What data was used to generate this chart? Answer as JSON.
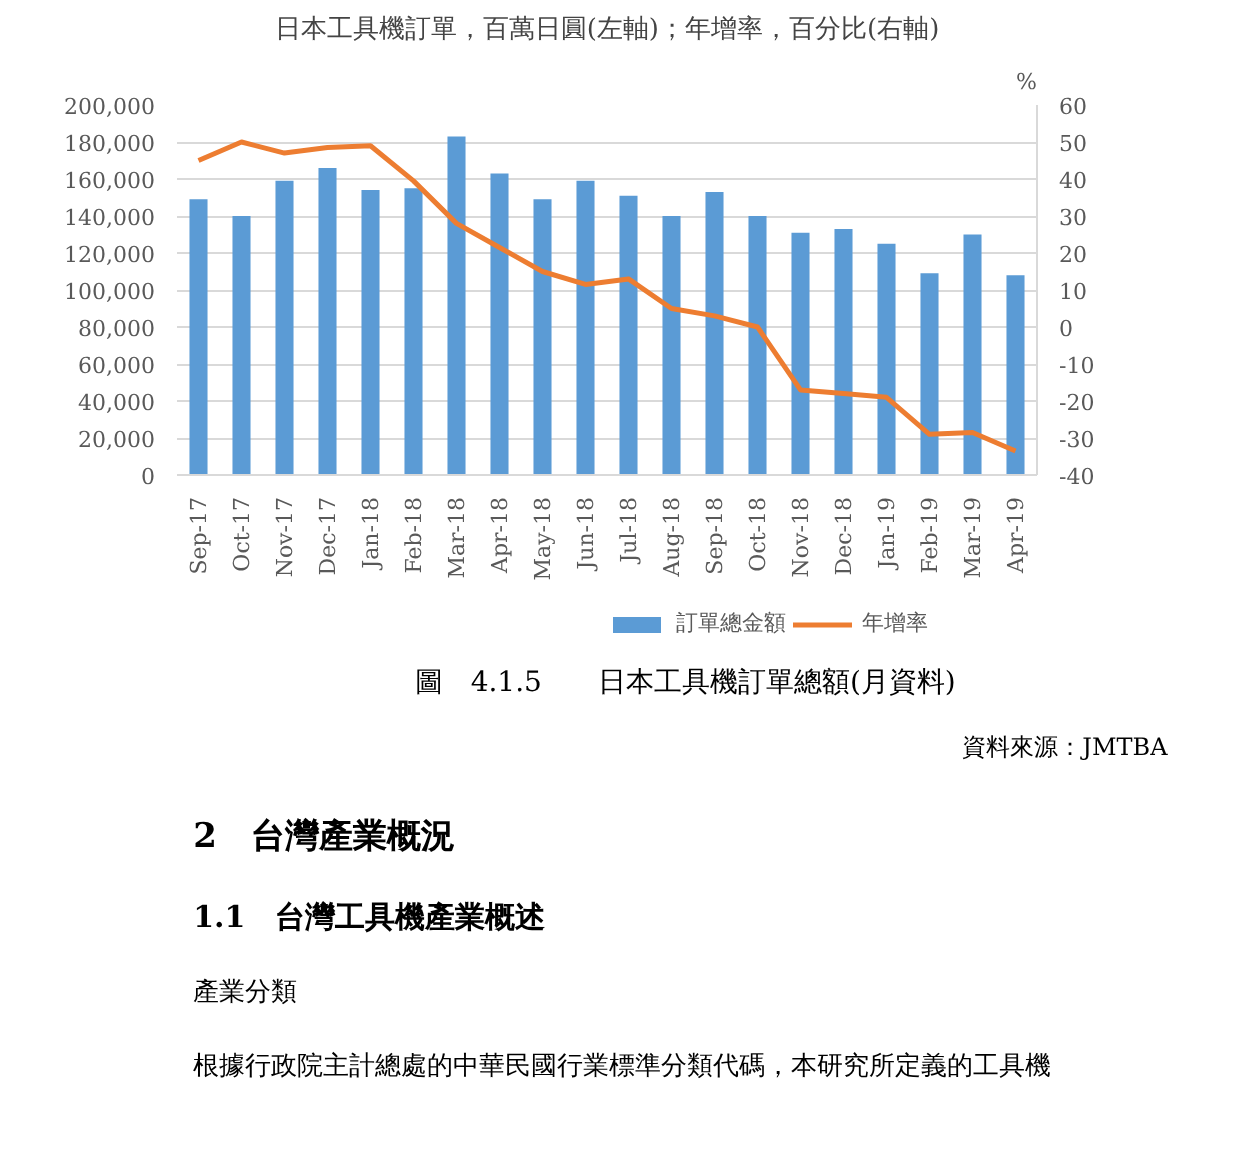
{
  "chart_data": {
    "type": "bar",
    "title": "日本工具機訂單，百萬日圓(左軸)；年增率，百分比(右軸)",
    "y2label": "%",
    "categories": [
      "Sep-17",
      "Oct-17",
      "Nov-17",
      "Dec-17",
      "Jan-18",
      "Feb-18",
      "Mar-18",
      "Apr-18",
      "May-18",
      "Jun-18",
      "Jul-18",
      "Aug-18",
      "Sep-18",
      "Oct-18",
      "Nov-18",
      "Dec-18",
      "Jan-19",
      "Feb-19",
      "Mar-19",
      "Apr-19"
    ],
    "series": [
      {
        "name": "訂單總金額",
        "color": "#5b9bd5",
        "values": [
          149000,
          140000,
          159000,
          166000,
          154000,
          155000,
          183000,
          163000,
          149000,
          159000,
          151000,
          140000,
          153000,
          140000,
          131000,
          133000,
          125000,
          109000,
          130000,
          108000
        ]
      },
      {
        "name": "年增率",
        "type": "line",
        "axis": "y2",
        "color": "#ed7d31",
        "values": [
          45,
          50,
          47,
          48.5,
          49,
          39.5,
          28,
          21.5,
          15,
          11.5,
          13,
          5,
          3,
          0,
          -17,
          -18,
          -19,
          -29,
          -28.5,
          -33.5
        ]
      }
    ],
    "ylim": [
      0,
      200000
    ],
    "yticks": [
      {
        "value": 0,
        "label": "0"
      },
      {
        "value": 20000,
        "label": "20,000"
      },
      {
        "value": 40000,
        "label": "40,000"
      },
      {
        "value": 60000,
        "label": "60,000"
      },
      {
        "value": 80000,
        "label": "80,000"
      },
      {
        "value": 100000,
        "label": "100,000"
      },
      {
        "value": 120000,
        "label": "120,000"
      },
      {
        "value": 140000,
        "label": "140,000"
      },
      {
        "value": 160000,
        "label": "160,000"
      },
      {
        "value": 180000,
        "label": "180,000"
      },
      {
        "value": 200000,
        "label": "200,000"
      }
    ],
    "y2lim": [
      -40,
      60
    ],
    "y2ticks": [
      -40,
      -30,
      -20,
      -10,
      0,
      10,
      20,
      30,
      40,
      50,
      60
    ],
    "grid": "y",
    "legend": "bottom",
    "marker": "none",
    "line_style": "solid",
    "annotations": [
      "圖　4.1.5　　日本工具機訂單總額(月資料)",
      "資料來源：JMTBA",
      "2　台灣產業概況",
      "1.1　台灣工具機產業概述",
      "產業分類",
      "根據行政院主計總處的中華民國行業標準分類代碼，本研究所定義的工具機"
    ]
  }
}
